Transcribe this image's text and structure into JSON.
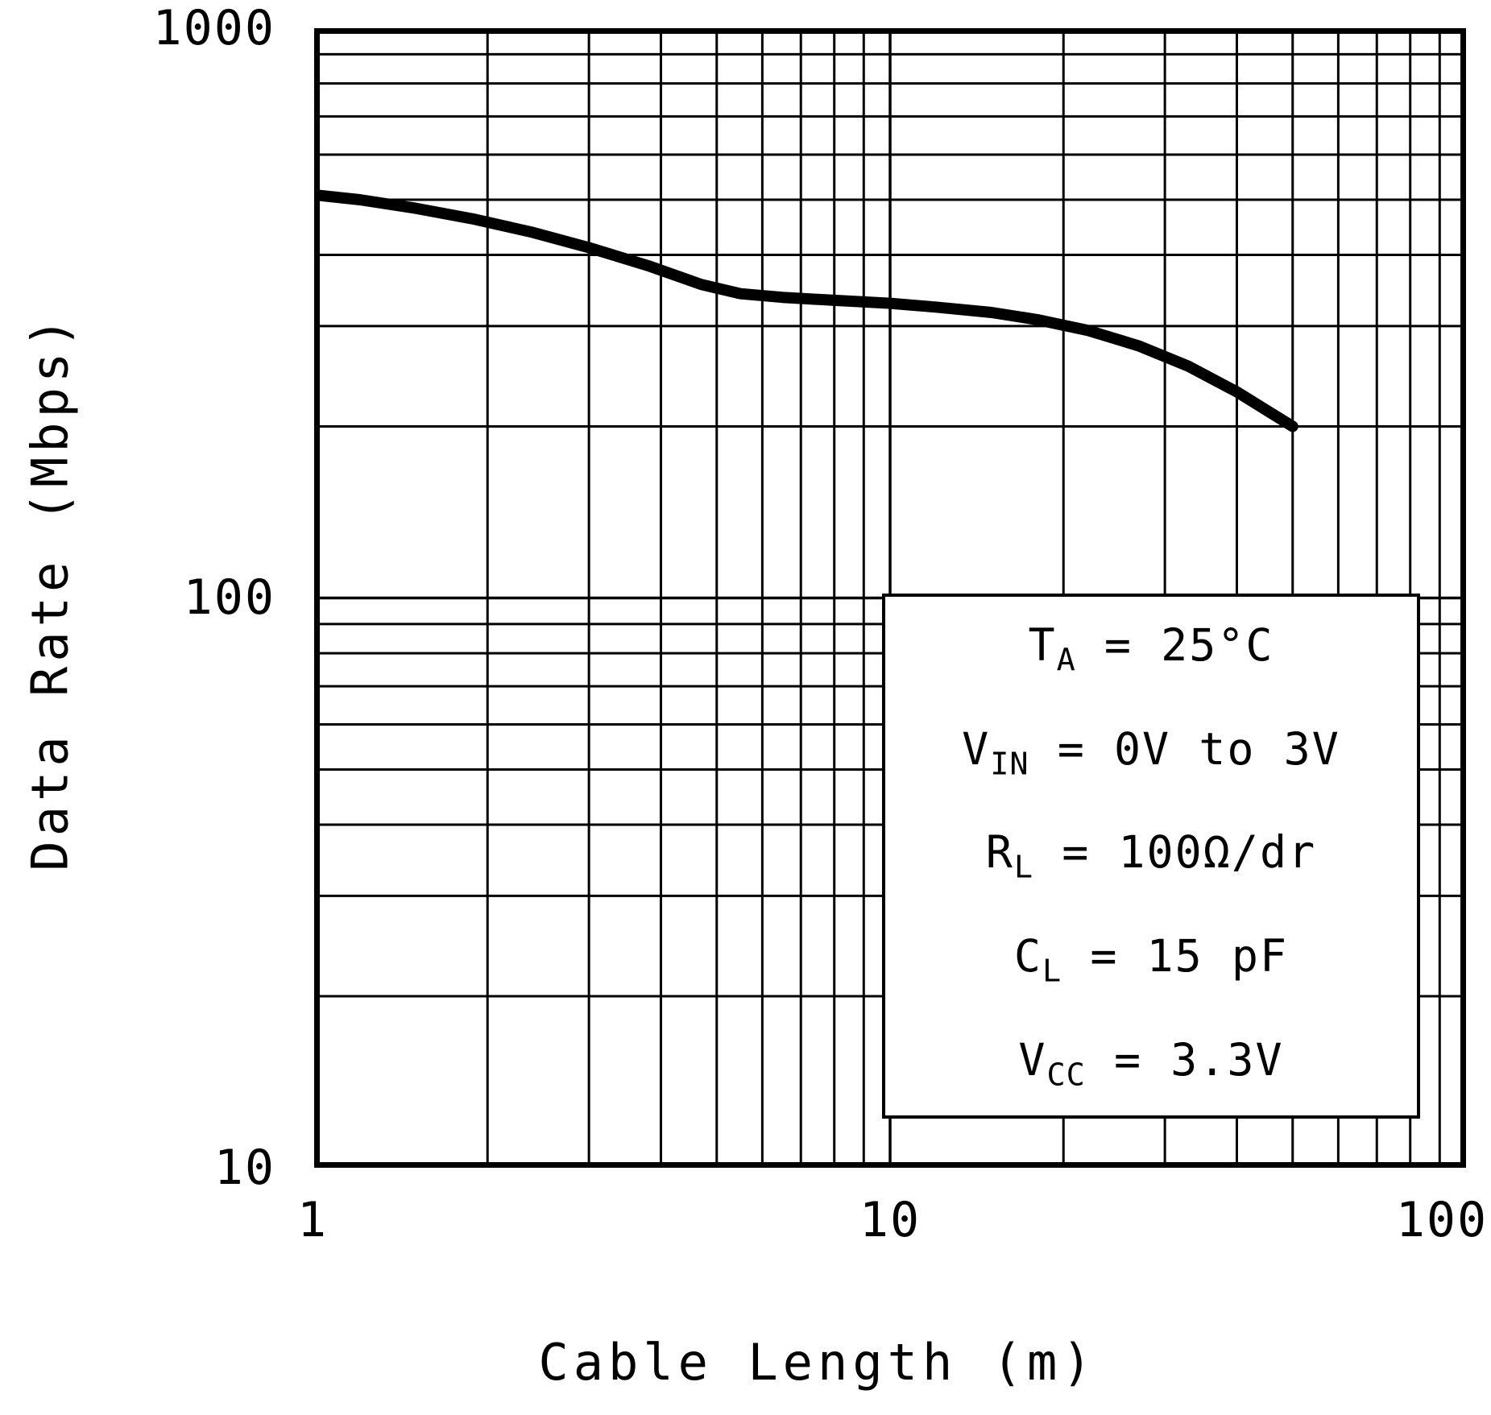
{
  "chart_data": {
    "type": "line",
    "title": "",
    "xlabel": "Cable Length (m)",
    "ylabel": "Data Rate (Mbps)",
    "xscale": "log",
    "yscale": "log",
    "xlim": [
      1,
      100
    ],
    "ylim": [
      10,
      1000
    ],
    "xticks": [
      "1",
      "10",
      "100"
    ],
    "yticks": [
      "1000",
      "100",
      "10"
    ],
    "grid": "full log grid (major and minor), black on white",
    "line_color": "#000000",
    "x": [
      1,
      1.2,
      1.5,
      1.9,
      2.4,
      3,
      3.8,
      4.7,
      5.5,
      6.5,
      8,
      10,
      12,
      15,
      18,
      22,
      27,
      33,
      40,
      50
    ],
    "y": [
      510,
      500,
      483,
      462,
      438,
      412,
      383,
      355,
      342,
      337,
      333,
      329,
      324,
      317,
      308,
      295,
      277,
      255,
      230,
      200
    ],
    "annotation": {
      "position": "lower-right",
      "lines": [
        {
          "pre": "T",
          "sub": "A",
          "post": " = 25°C"
        },
        {
          "pre": "V",
          "sub": "IN",
          "post": " = 0V to 3V"
        },
        {
          "pre": "R",
          "sub": "L",
          "post": " = 100Ω/dr"
        },
        {
          "pre": "C",
          "sub": "L",
          "post": " = 15 pF"
        },
        {
          "pre": "V",
          "sub": "CC",
          "post": " = 3.3V"
        }
      ]
    }
  }
}
